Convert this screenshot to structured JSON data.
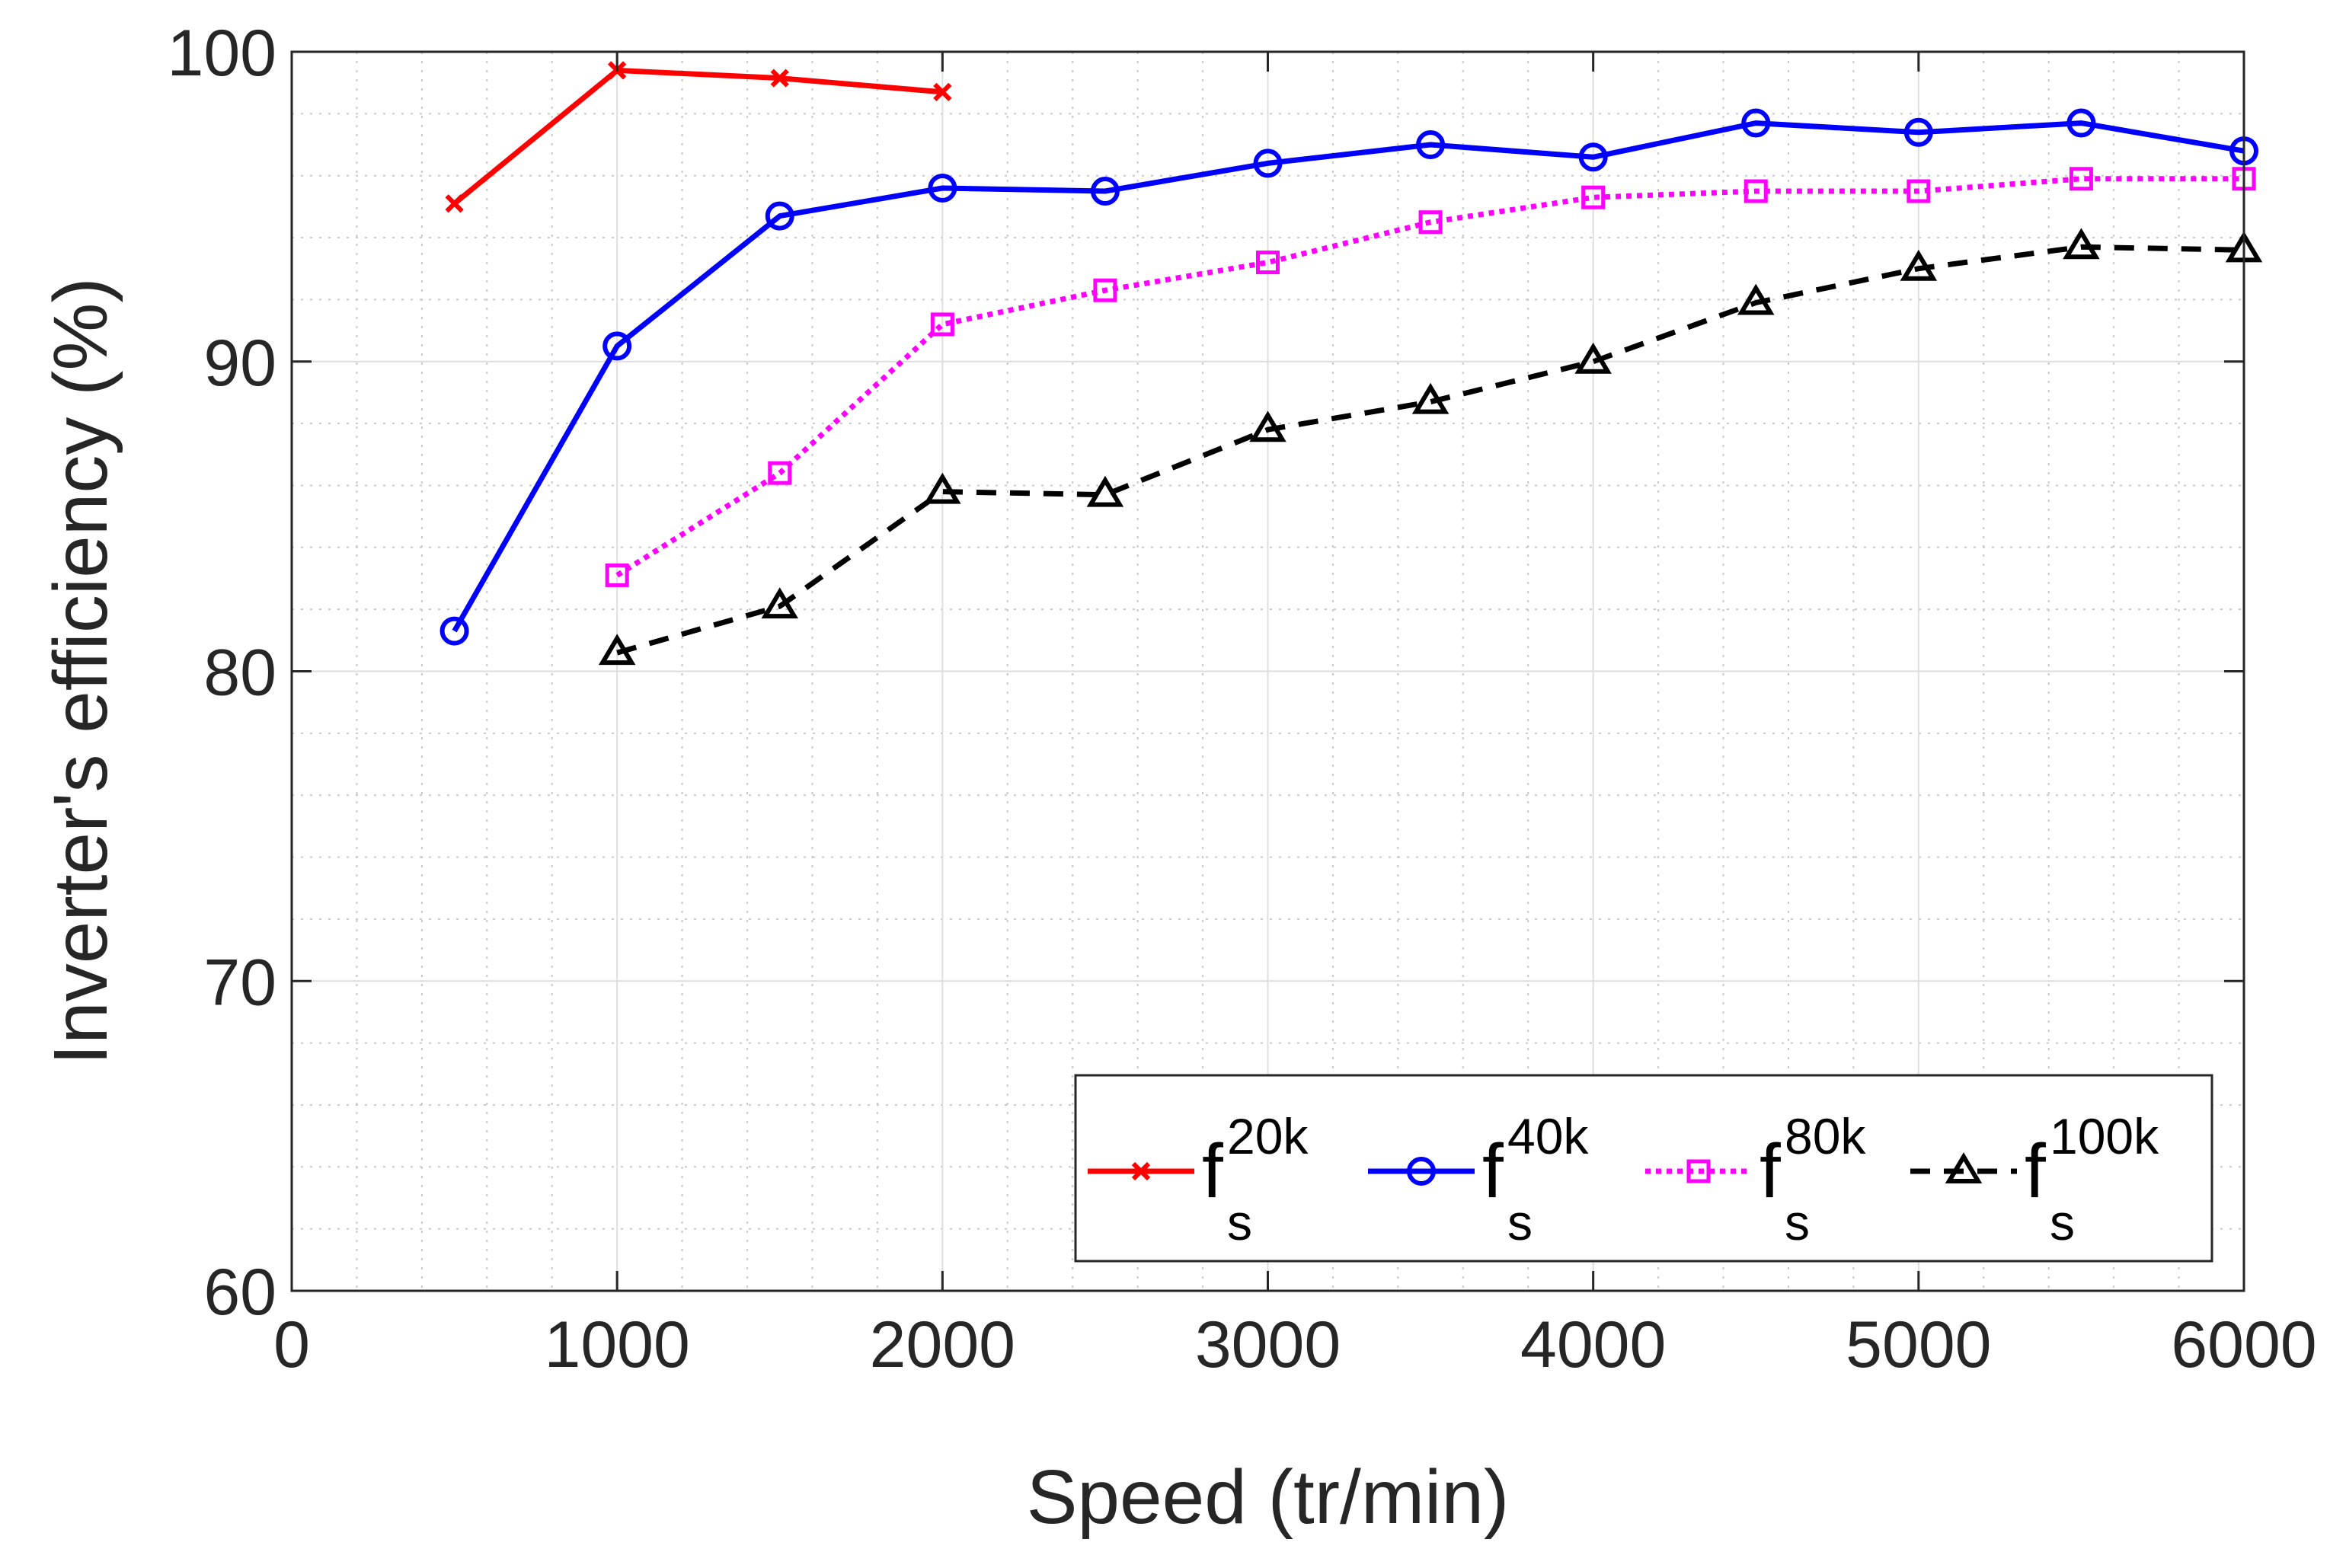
{
  "chart_data": {
    "type": "line",
    "title": "",
    "xlabel": "Speed (tr/min)",
    "ylabel": "Inverter's efficiency (%)",
    "xlim": [
      0,
      6000
    ],
    "ylim": [
      60,
      100
    ],
    "xticks": [
      0,
      1000,
      2000,
      3000,
      4000,
      5000,
      6000
    ],
    "yticks": [
      60,
      70,
      80,
      90,
      100
    ],
    "xtick_labels": [
      "0",
      "1000",
      "2000",
      "3000",
      "4000",
      "5000",
      "6000"
    ],
    "ytick_labels": [
      "60",
      "70",
      "80",
      "90",
      "100"
    ],
    "grid": true,
    "minor_grid": true,
    "legend_position": "bottom-right",
    "series": [
      {
        "name": "fs20k",
        "label_main": "f",
        "label_sup": "20k",
        "label_sub": "s",
        "color": "#ff0000",
        "line_style": "solid",
        "marker": "x",
        "x": [
          500,
          1000,
          1500,
          2000
        ],
        "y": [
          95.1,
          99.4,
          99.15,
          98.7
        ]
      },
      {
        "name": "fs40k",
        "label_main": "f",
        "label_sup": "40k",
        "label_sub": "s",
        "color": "#0000ff",
        "line_style": "solid",
        "marker": "circle",
        "x": [
          500,
          1000,
          1500,
          2000,
          2500,
          3000,
          3500,
          4000,
          4500,
          5000,
          5500,
          6000
        ],
        "y": [
          81.3,
          90.5,
          94.7,
          95.6,
          95.5,
          96.4,
          97.0,
          96.6,
          97.7,
          97.4,
          97.7,
          96.8
        ]
      },
      {
        "name": "fs80k",
        "label_main": "f",
        "label_sup": "80k",
        "label_sub": "s",
        "color": "#ff00ff",
        "line_style": "dotted",
        "marker": "square",
        "x": [
          1000,
          1500,
          2000,
          2500,
          3000,
          3500,
          4000,
          4500,
          5000,
          5500,
          6000
        ],
        "y": [
          83.1,
          86.4,
          91.2,
          92.3,
          93.2,
          94.5,
          95.3,
          95.5,
          95.5,
          95.9,
          95.9
        ]
      },
      {
        "name": "fs100k",
        "label_main": "f",
        "label_sup": "100k",
        "label_sub": "s",
        "color": "#000000",
        "line_style": "dashed",
        "marker": "triangle",
        "x": [
          1000,
          1500,
          2000,
          2500,
          3000,
          3500,
          4000,
          4500,
          5000,
          5500,
          6000
        ],
        "y": [
          80.6,
          82.1,
          85.8,
          85.7,
          87.8,
          88.7,
          90.0,
          91.9,
          93.0,
          93.7,
          93.6
        ]
      }
    ]
  }
}
